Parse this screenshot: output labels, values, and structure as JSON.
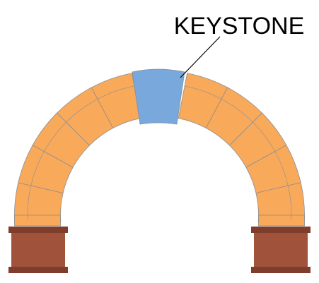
{
  "diagram": {
    "label": "KEYSTONE",
    "colors": {
      "voussoir": "#F9A95A",
      "keystone": "#79A8DD",
      "pier": "#A0523A",
      "pier_band": "#7E3E2B",
      "stroke": "#8E8E8E",
      "leader": "#000000"
    }
  }
}
